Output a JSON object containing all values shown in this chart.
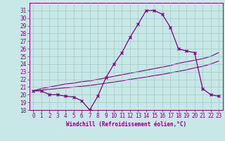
{
  "xlabel": "Windchill (Refroidissement éolien,°C)",
  "bg_color": "#c8e8e8",
  "line_color": "#800080",
  "x_data": [
    0,
    1,
    2,
    3,
    4,
    5,
    6,
    7,
    8,
    9,
    10,
    11,
    12,
    13,
    14,
    15,
    16,
    17,
    18,
    19,
    20,
    21,
    22,
    23
  ],
  "y_main": [
    20.5,
    20.5,
    20.0,
    20.0,
    19.8,
    19.7,
    19.2,
    18.0,
    19.8,
    22.2,
    24.0,
    25.5,
    27.5,
    29.2,
    31.0,
    31.0,
    30.5,
    28.8,
    26.0,
    25.7,
    25.5,
    20.8,
    20.0,
    19.8
  ],
  "y_line1": [
    20.5,
    20.8,
    21.0,
    21.2,
    21.4,
    21.5,
    21.7,
    21.8,
    22.0,
    22.2,
    22.4,
    22.6,
    22.8,
    23.0,
    23.2,
    23.4,
    23.6,
    23.8,
    24.1,
    24.3,
    24.5,
    24.7,
    25.0,
    25.5
  ],
  "y_line2": [
    20.5,
    20.6,
    20.7,
    20.8,
    20.9,
    21.0,
    21.1,
    21.2,
    21.35,
    21.5,
    21.65,
    21.8,
    22.0,
    22.15,
    22.3,
    22.5,
    22.65,
    22.85,
    23.05,
    23.25,
    23.5,
    23.7,
    24.0,
    24.4
  ],
  "ylim": [
    18,
    32
  ],
  "xlim_min": -0.5,
  "xlim_max": 23.5,
  "yticks": [
    18,
    19,
    20,
    21,
    22,
    23,
    24,
    25,
    26,
    27,
    28,
    29,
    30,
    31
  ],
  "xticks": [
    0,
    1,
    2,
    3,
    4,
    5,
    6,
    7,
    8,
    9,
    10,
    11,
    12,
    13,
    14,
    15,
    16,
    17,
    18,
    19,
    20,
    21,
    22,
    23
  ],
  "grid_color": "#a0c8c8",
  "marker": "x",
  "marker_size": 3,
  "linewidth_main": 0.9,
  "linewidth_straight": 0.8,
  "tick_fontsize": 5.5,
  "xlabel_fontsize": 5.5
}
